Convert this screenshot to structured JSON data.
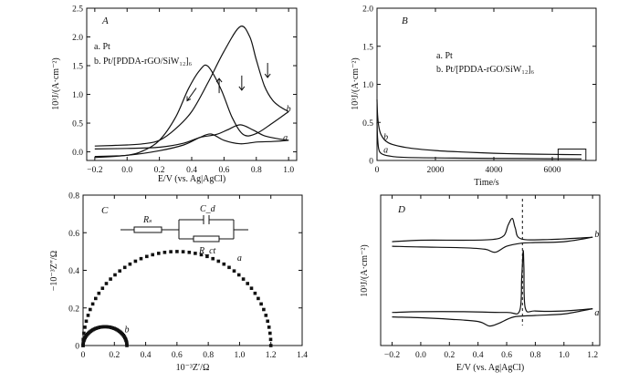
{
  "chart_data": [
    {
      "panel": "A",
      "type": "line",
      "ylabel": "10³J/(A·cm⁻²)",
      "xlabel": "E/V (vs. Ag|AgCl)",
      "xlim": [
        -0.25,
        1.05
      ],
      "ylim": [
        -0.15,
        2.5
      ],
      "xticks": [
        "−0.2",
        "0.0",
        "0.2",
        "0.4",
        "0.6",
        "0.8",
        "1.0"
      ],
      "xtick_values": [
        -0.2,
        0,
        0.2,
        0.4,
        0.6,
        0.8,
        1.0
      ],
      "yticks": [
        "0.0",
        "0.5",
        "1.0",
        "1.5",
        "2.0",
        "2.5"
      ],
      "ytick_values": [
        0,
        0.5,
        1.0,
        1.5,
        2.0,
        2.5
      ],
      "legend": [
        "a. Pt",
        "b. Pt/[PDDA-rGO/SiW₁₂]₆"
      ],
      "curve_labels": [
        {
          "text": "a",
          "x": 0.98,
          "y": 0.2
        },
        {
          "text": "b",
          "x": 1.0,
          "y": 0.7
        }
      ],
      "series": [
        {
          "name": "a",
          "anodic": [
            [
              -0.2,
              0.05
            ],
            [
              0,
              0.06
            ],
            [
              0.2,
              0.08
            ],
            [
              0.35,
              0.15
            ],
            [
              0.45,
              0.25
            ],
            [
              0.55,
              0.3
            ],
            [
              0.62,
              0.38
            ],
            [
              0.7,
              0.47
            ],
            [
              0.78,
              0.38
            ],
            [
              0.85,
              0.28
            ],
            [
              0.95,
              0.22
            ],
            [
              1.0,
              0.2
            ]
          ],
          "cathodic": [
            [
              1.0,
              0.2
            ],
            [
              0.9,
              0.18
            ],
            [
              0.8,
              0.17
            ],
            [
              0.7,
              0.14
            ],
            [
              0.6,
              0.2
            ],
            [
              0.52,
              0.31
            ],
            [
              0.45,
              0.25
            ],
            [
              0.35,
              0.12
            ],
            [
              0.2,
              0.02
            ],
            [
              0,
              -0.06
            ],
            [
              -0.2,
              -0.08
            ]
          ]
        },
        {
          "name": "b",
          "anodic": [
            [
              -0.2,
              0.1
            ],
            [
              0,
              0.12
            ],
            [
              0.1,
              0.14
            ],
            [
              0.2,
              0.2
            ],
            [
              0.3,
              0.4
            ],
            [
              0.4,
              0.7
            ],
            [
              0.5,
              1.2
            ],
            [
              0.6,
              1.75
            ],
            [
              0.7,
              2.18
            ],
            [
              0.76,
              2.0
            ],
            [
              0.8,
              1.6
            ],
            [
              0.85,
              1.15
            ],
            [
              0.9,
              0.9
            ],
            [
              0.95,
              0.78
            ],
            [
              1.0,
              0.7
            ]
          ],
          "cathodic": [
            [
              1.0,
              0.7
            ],
            [
              0.9,
              0.5
            ],
            [
              0.8,
              0.32
            ],
            [
              0.72,
              0.3
            ],
            [
              0.65,
              0.6
            ],
            [
              0.58,
              1.1
            ],
            [
              0.5,
              1.49
            ],
            [
              0.45,
              1.42
            ],
            [
              0.38,
              1.1
            ],
            [
              0.3,
              0.6
            ],
            [
              0.2,
              0.2
            ],
            [
              0.1,
              0.02
            ],
            [
              0,
              -0.06
            ],
            [
              -0.2,
              -0.1
            ]
          ]
        }
      ],
      "arrows": [
        {
          "x": 0.4,
          "y": 1.0,
          "dir": "down-left"
        },
        {
          "x": 0.57,
          "y": 1.15,
          "dir": "up"
        },
        {
          "x": 0.71,
          "y": 1.2,
          "dir": "down"
        },
        {
          "x": 0.87,
          "y": 1.42,
          "dir": "down"
        }
      ]
    },
    {
      "panel": "B",
      "type": "line",
      "ylabel": "10³J/(A·cm⁻²)",
      "xlabel": "Time/s",
      "xlim": [
        0,
        7500
      ],
      "ylim": [
        0,
        2.0
      ],
      "xticks": [
        "0",
        "2000",
        "4000",
        "6000"
      ],
      "xtick_values": [
        0,
        2000,
        4000,
        6000
      ],
      "yticks": [
        "0",
        "0.5",
        "1.0",
        "1.5",
        "2.0"
      ],
      "ytick_values": [
        0,
        0.5,
        1.0,
        1.5,
        2.0
      ],
      "legend": [
        "a. Pt",
        "b. Pt/[PDDA-rGO/SiW₁₂]₆"
      ],
      "curve_labels": [
        {
          "text": "b",
          "x": 300,
          "y": 0.27
        },
        {
          "text": "a",
          "x": 300,
          "y": 0.1
        }
      ],
      "series": [
        {
          "name": "a",
          "points": [
            [
              0,
              0.5
            ],
            [
              20,
              0.3
            ],
            [
              60,
              0.15
            ],
            [
              150,
              0.09
            ],
            [
              400,
              0.06
            ],
            [
              1000,
              0.04
            ],
            [
              3000,
              0.03
            ],
            [
              5000,
              0.025
            ],
            [
              7000,
              0.02
            ]
          ]
        },
        {
          "name": "b",
          "points": [
            [
              0,
              0.8
            ],
            [
              20,
              0.6
            ],
            [
              60,
              0.45
            ],
            [
              150,
              0.33
            ],
            [
              400,
              0.23
            ],
            [
              1000,
              0.17
            ],
            [
              2000,
              0.13
            ],
            [
              3000,
              0.11
            ],
            [
              4000,
              0.095
            ],
            [
              5000,
              0.085
            ],
            [
              6000,
              0.08
            ],
            [
              7000,
              0.075
            ]
          ]
        }
      ],
      "box": {
        "x0": 6200,
        "x1": 7150,
        "y0": 0.0,
        "y1": 0.15
      }
    },
    {
      "panel": "C",
      "type": "scatter",
      "ylabel": "−10⁻³Z″/Ω",
      "xlabel": "10⁻³Z′/Ω",
      "xlim": [
        0,
        1.4
      ],
      "ylim": [
        0,
        0.8
      ],
      "xticks": [
        "0",
        "0.2",
        "0.4",
        "0.6",
        "0.8",
        "1.0",
        "1.2",
        "1.4"
      ],
      "xtick_values": [
        0,
        0.2,
        0.4,
        0.6,
        0.8,
        1.0,
        1.2,
        1.4
      ],
      "yticks": [
        "0",
        "0.2",
        "0.4",
        "0.6",
        "0.8"
      ],
      "ytick_values": [
        0,
        0.2,
        0.4,
        0.6,
        0.8
      ],
      "curve_labels": [
        {
          "text": "a",
          "x": 1.0,
          "y": 0.45
        },
        {
          "text": "b",
          "x": 0.28,
          "y": 0.07
        }
      ],
      "series": [
        {
          "name": "a",
          "semicircle": {
            "z0": 0.0,
            "z1": 1.2,
            "height": 0.5,
            "n": 48
          }
        },
        {
          "name": "b",
          "semicircle": {
            "z0": 0.0,
            "z1": 0.28,
            "height": 0.1,
            "n": 44
          }
        }
      ],
      "circuit": {
        "Rs": "Rₛ",
        "Cd": "C_d",
        "Rct": "R_ct"
      }
    },
    {
      "panel": "D",
      "type": "line",
      "ylabel": "10³J/(A·cm⁻²)",
      "xlabel": "E/V (vs. Ag|AgCl)",
      "xlim": [
        -0.28,
        1.25
      ],
      "ylim": [
        0,
        10
      ],
      "xticks": [
        "−0.2",
        "0.0",
        "0.2",
        "0.4",
        "0.6",
        "0.8",
        "1.0",
        "1.2"
      ],
      "xtick_values": [
        -0.2,
        0,
        0.2,
        0.4,
        0.6,
        0.8,
        1.0,
        1.2
      ],
      "dashed_x": 0.71,
      "curve_labels": [
        {
          "text": "b",
          "x": 1.23,
          "y": 7.2
        },
        {
          "text": "a",
          "x": 1.23,
          "y": 2.0
        }
      ],
      "series": [
        {
          "name": "b",
          "anodic": [
            [
              -0.2,
              6.9
            ],
            [
              0,
              7.0
            ],
            [
              0.3,
              7.0
            ],
            [
              0.5,
              7.05
            ],
            [
              0.58,
              7.3
            ],
            [
              0.61,
              8.0
            ],
            [
              0.64,
              8.45
            ],
            [
              0.66,
              7.8
            ],
            [
              0.7,
              7.1
            ],
            [
              0.9,
              7.05
            ],
            [
              1.2,
              7.2
            ]
          ],
          "cathodic": [
            [
              1.2,
              7.2
            ],
            [
              1.0,
              6.9
            ],
            [
              0.8,
              6.85
            ],
            [
              0.7,
              6.8
            ],
            [
              0.6,
              6.6
            ],
            [
              0.52,
              6.2
            ],
            [
              0.45,
              6.4
            ],
            [
              0.3,
              6.5
            ],
            [
              0,
              6.55
            ],
            [
              -0.2,
              6.6
            ]
          ]
        },
        {
          "name": "a",
          "anodic": [
            [
              -0.2,
              2.2
            ],
            [
              0,
              2.25
            ],
            [
              0.3,
              2.25
            ],
            [
              0.6,
              2.2
            ],
            [
              0.69,
              2.3
            ],
            [
              0.705,
              4.5
            ],
            [
              0.715,
              6.3
            ],
            [
              0.72,
              5.2
            ],
            [
              0.73,
              2.5
            ],
            [
              0.8,
              2.3
            ],
            [
              1.0,
              2.3
            ],
            [
              1.2,
              2.45
            ]
          ],
          "cathodic": [
            [
              1.2,
              2.45
            ],
            [
              1.0,
              2.1
            ],
            [
              0.8,
              2.0
            ],
            [
              0.65,
              1.9
            ],
            [
              0.55,
              1.5
            ],
            [
              0.48,
              1.3
            ],
            [
              0.4,
              1.6
            ],
            [
              0.2,
              1.75
            ],
            [
              0,
              1.85
            ],
            [
              -0.2,
              1.9
            ]
          ]
        }
      ]
    }
  ]
}
